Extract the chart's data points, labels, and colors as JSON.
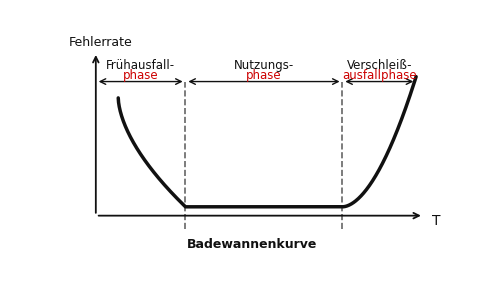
{
  "title_y": "Fehlerrate",
  "title_x": "T",
  "subtitle": "Badewannenkurve",
  "phase1_line1": "Frühausfall-",
  "phase1_line2": "phase",
  "phase2_line1": "Nutzungs-",
  "phase2_line2": "phase",
  "phase3_line1": "Verschleiß-",
  "phase3_line2": "ausfallphase",
  "red_color": "#cc0000",
  "dashed_color": "#666666",
  "curve_color": "#111111",
  "arrow_color": "#111111",
  "bg_color": "#ffffff",
  "text_color": "#111111",
  "t1": 0.28,
  "t2": 0.77
}
